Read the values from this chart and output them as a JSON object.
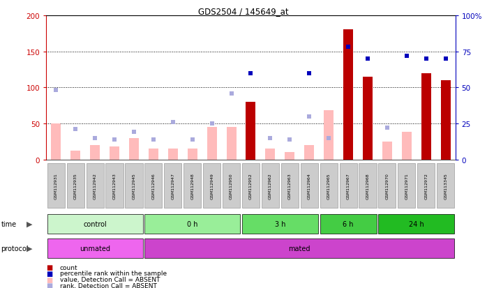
{
  "title": "GDS2504 / 145649_at",
  "samples": [
    "GSM112931",
    "GSM112935",
    "GSM112942",
    "GSM112943",
    "GSM112945",
    "GSM112946",
    "GSM112947",
    "GSM112948",
    "GSM112949",
    "GSM112950",
    "GSM112952",
    "GSM112962",
    "GSM112963",
    "GSM112964",
    "GSM112965",
    "GSM112967",
    "GSM112968",
    "GSM112970",
    "GSM112971",
    "GSM112972",
    "GSM113345"
  ],
  "count_values": [
    0,
    0,
    0,
    0,
    0,
    0,
    0,
    0,
    0,
    0,
    80,
    0,
    0,
    0,
    0,
    180,
    115,
    0,
    0,
    120,
    110
  ],
  "count_absent": [
    true,
    true,
    true,
    true,
    true,
    true,
    true,
    true,
    true,
    true,
    false,
    true,
    true,
    true,
    true,
    false,
    false,
    true,
    true,
    false,
    false
  ],
  "value_absent": [
    50,
    12,
    20,
    18,
    30,
    15,
    15,
    15,
    45,
    45,
    0,
    15,
    10,
    20,
    68,
    0,
    25,
    25,
    38,
    0,
    0
  ],
  "rank_absent_pct": [
    48,
    21,
    15,
    14,
    19,
    14,
    26,
    14,
    25,
    46,
    0,
    15,
    14,
    30,
    15,
    0,
    45,
    22,
    0,
    0,
    0
  ],
  "percentile_rank": [
    null,
    null,
    null,
    null,
    null,
    null,
    null,
    null,
    null,
    null,
    60,
    null,
    null,
    60,
    null,
    78,
    70,
    null,
    72,
    70,
    70
  ],
  "time_groups": [
    {
      "label": "control",
      "start": 0,
      "end": 5,
      "color": "#ccf5cc"
    },
    {
      "label": "0 h",
      "start": 5,
      "end": 10,
      "color": "#99ee99"
    },
    {
      "label": "3 h",
      "start": 10,
      "end": 14,
      "color": "#66dd66"
    },
    {
      "label": "6 h",
      "start": 14,
      "end": 17,
      "color": "#44cc44"
    },
    {
      "label": "24 h",
      "start": 17,
      "end": 21,
      "color": "#22bb22"
    }
  ],
  "protocol_groups": [
    {
      "label": "unmated",
      "start": 0,
      "end": 5,
      "color": "#ee66ee"
    },
    {
      "label": "mated",
      "start": 5,
      "end": 21,
      "color": "#cc44cc"
    }
  ],
  "ylim_left": [
    0,
    200
  ],
  "ylim_right": [
    0,
    100
  ],
  "yticks_left": [
    0,
    50,
    100,
    150,
    200
  ],
  "yticks_right": [
    0,
    25,
    50,
    75,
    100
  ],
  "ytick_labels_right": [
    "0",
    "25",
    "50",
    "75",
    "100%"
  ],
  "grid_values": [
    50,
    100,
    150
  ],
  "left_tick_color": "#cc0000",
  "right_tick_color": "#0000bb",
  "count_color": "#bb0000",
  "value_absent_color": "#ffbbbb",
  "rank_absent_color": "#aaaadd",
  "percentile_color": "#0000bb",
  "bg_color": "#ffffff",
  "xticklabel_bg": "#cccccc"
}
